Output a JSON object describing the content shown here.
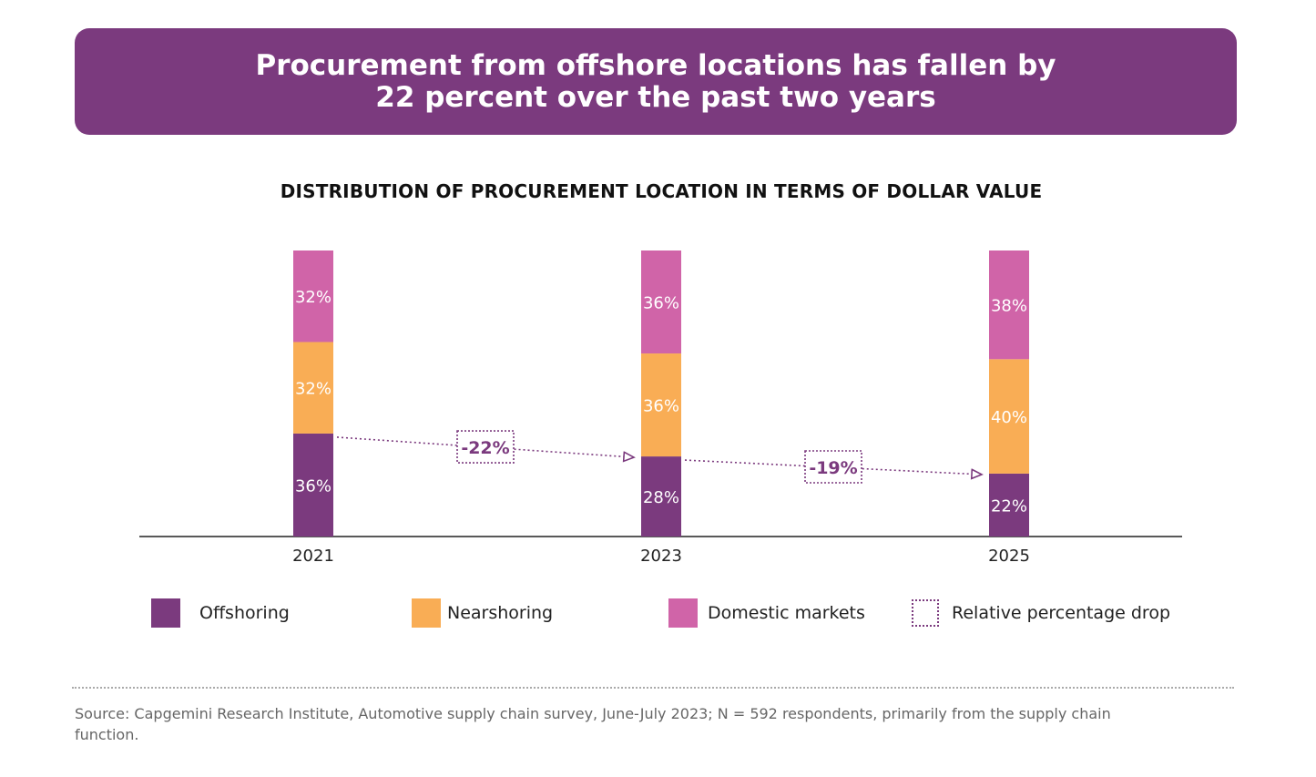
{
  "header": {
    "title": "Procurement from offshore locations has fallen by 22 percent over the past two years"
  },
  "chart_data": {
    "type": "bar",
    "stacked": true,
    "title": "DISTRIBUTION OF PROCUREMENT LOCATION IN TERMS OF DOLLAR VALUE",
    "categories": [
      "2021",
      "2023",
      "2025"
    ],
    "series": [
      {
        "name": "Offshoring",
        "color": "#7b3a7e",
        "values": [
          36,
          28,
          22
        ]
      },
      {
        "name": "Nearshoring",
        "color": "#f9ad55",
        "values": [
          32,
          36,
          40
        ]
      },
      {
        "name": "Domestic markets",
        "color": "#d064a8",
        "values": [
          32,
          36,
          38
        ]
      }
    ],
    "annotations": [
      {
        "label": "-22%",
        "from": "2021",
        "to": "2023"
      },
      {
        "label": "-19%",
        "from": "2023",
        "to": "2025"
      }
    ],
    "unit": "%",
    "ylim": [
      0,
      100
    ],
    "xlabel": "",
    "ylabel": ""
  },
  "legend": {
    "items": [
      {
        "label": "Offshoring",
        "color": "#7b3a7e"
      },
      {
        "label": "Nearshoring",
        "color": "#f9ad55"
      },
      {
        "label": "Domestic markets",
        "color": "#d064a8"
      },
      {
        "label": "Relative percentage drop",
        "color": "#7b3a7e"
      }
    ]
  },
  "footer": {
    "source": "Source: Capgemini Research Institute, Automotive supply chain survey, June-July 2023; N = 592 respondents, primarily from the supply chain function."
  }
}
